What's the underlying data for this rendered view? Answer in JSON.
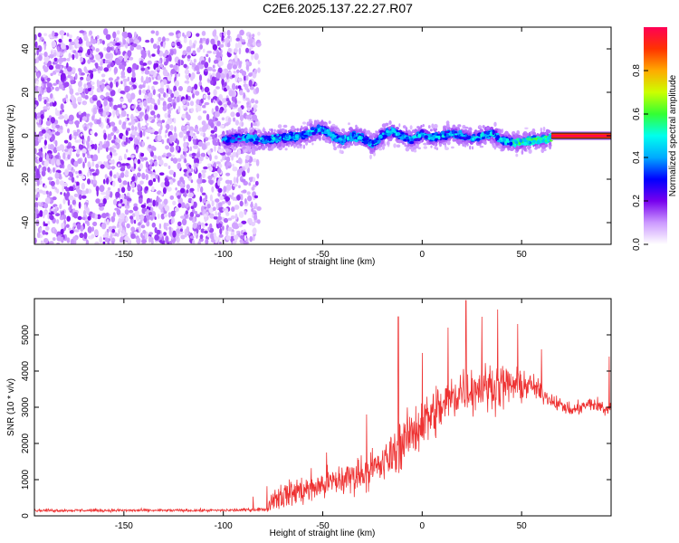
{
  "title": "C2E6.2025.137.22.27.R07",
  "chart_data": [
    {
      "type": "heatmap",
      "xlabel": "Height of straight line (km)",
      "ylabel": "Frequency (Hz)",
      "xlim": [
        -195,
        95
      ],
      "ylim": [
        -50,
        50
      ],
      "x_ticks": [
        -150,
        -100,
        -50,
        0,
        50
      ],
      "y_ticks": [
        -40,
        -20,
        0,
        20,
        40
      ],
      "colorbar": {
        "label": "Normalized spectral amplitude",
        "range": [
          0,
          1
        ],
        "ticks": [
          0.0,
          0.2,
          0.4,
          0.6,
          0.8
        ],
        "tick_labels": [
          "0.0",
          "0.2",
          "0.4",
          "0.6",
          "0.8"
        ],
        "colormap": [
          "#ffffff",
          "#cc99ff",
          "#7700ee",
          "#0000ff",
          "#00aaff",
          "#00ffee",
          "#33ff33",
          "#ccff00",
          "#ffaa00",
          "#ff3300",
          "#ff0055"
        ]
      },
      "noise_region": {
        "x": [
          -195,
          -82
        ],
        "freq": [
          -50,
          48
        ]
      },
      "signal_ridge": [
        {
          "x": -100,
          "freq": -2
        },
        {
          "x": -90,
          "freq": -1
        },
        {
          "x": -80,
          "freq": -2
        },
        {
          "x": -70,
          "freq": -1
        },
        {
          "x": -60,
          "freq": 0
        },
        {
          "x": -55,
          "freq": 2
        },
        {
          "x": -50,
          "freq": 3
        },
        {
          "x": -45,
          "freq": 0
        },
        {
          "x": -40,
          "freq": -2
        },
        {
          "x": -35,
          "freq": 0
        },
        {
          "x": -30,
          "freq": -1
        },
        {
          "x": -25,
          "freq": -4
        },
        {
          "x": -20,
          "freq": 0
        },
        {
          "x": -15,
          "freq": 2
        },
        {
          "x": -10,
          "freq": 0
        },
        {
          "x": -5,
          "freq": -2
        },
        {
          "x": 0,
          "freq": 1
        },
        {
          "x": 5,
          "freq": -1
        },
        {
          "x": 10,
          "freq": 0
        },
        {
          "x": 15,
          "freq": 1
        },
        {
          "x": 20,
          "freq": 0
        },
        {
          "x": 25,
          "freq": -1
        },
        {
          "x": 30,
          "freq": 0
        },
        {
          "x": 35,
          "freq": 1
        },
        {
          "x": 40,
          "freq": -2
        },
        {
          "x": 45,
          "freq": -3
        },
        {
          "x": 50,
          "freq": -3
        },
        {
          "x": 55,
          "freq": -2
        },
        {
          "x": 60,
          "freq": -2
        },
        {
          "x": 65,
          "freq": -1
        },
        {
          "x": 70,
          "freq": 0
        },
        {
          "x": 80,
          "freq": 0
        },
        {
          "x": 95,
          "freq": 0
        }
      ],
      "strong_band": {
        "x": [
          65,
          95
        ],
        "freq": 0,
        "amplitude": 1.0
      }
    },
    {
      "type": "line",
      "xlabel": "Height of straight line (km)",
      "ylabel": "SNR (10 * v/v)",
      "xlim": [
        -195,
        95
      ],
      "ylim": [
        0,
        6000
      ],
      "x_ticks": [
        -150,
        -100,
        -50,
        0,
        50
      ],
      "y_ticks": [
        0,
        1000,
        2000,
        3000,
        4000,
        5000
      ],
      "color": "#ee3333",
      "envelope": [
        {
          "x": -195,
          "mean": 150,
          "spread": 60
        },
        {
          "x": -100,
          "mean": 150,
          "spread": 60
        },
        {
          "x": -78,
          "mean": 180,
          "spread": 80
        },
        {
          "x": -75,
          "mean": 500,
          "spread": 500
        },
        {
          "x": -60,
          "mean": 700,
          "spread": 600
        },
        {
          "x": -40,
          "mean": 1000,
          "spread": 700
        },
        {
          "x": -20,
          "mean": 1400,
          "spread": 800
        },
        {
          "x": -10,
          "mean": 2000,
          "spread": 1000
        },
        {
          "x": 0,
          "mean": 2600,
          "spread": 1100
        },
        {
          "x": 10,
          "mean": 3000,
          "spread": 1100
        },
        {
          "x": 20,
          "mean": 3500,
          "spread": 1000
        },
        {
          "x": 40,
          "mean": 3600,
          "spread": 900
        },
        {
          "x": 55,
          "mean": 3600,
          "spread": 500
        },
        {
          "x": 65,
          "mean": 3200,
          "spread": 300
        },
        {
          "x": 75,
          "mean": 2900,
          "spread": 250
        },
        {
          "x": 85,
          "mean": 3100,
          "spread": 300
        },
        {
          "x": 95,
          "mean": 2900,
          "spread": 400
        }
      ],
      "peaks": [
        {
          "x": -85,
          "y": 530
        },
        {
          "x": -78,
          "y": 820
        },
        {
          "x": -63,
          "y": 1000
        },
        {
          "x": -48,
          "y": 1750
        },
        {
          "x": -28,
          "y": 2800
        },
        {
          "x": -12,
          "y": 5500
        },
        {
          "x": 0,
          "y": 4500
        },
        {
          "x": 13,
          "y": 5200
        },
        {
          "x": 22,
          "y": 5950
        },
        {
          "x": 30,
          "y": 5500
        },
        {
          "x": 38,
          "y": 5700
        },
        {
          "x": 48,
          "y": 5300
        },
        {
          "x": 60,
          "y": 4600
        },
        {
          "x": 94,
          "y": 4400
        }
      ]
    }
  ]
}
